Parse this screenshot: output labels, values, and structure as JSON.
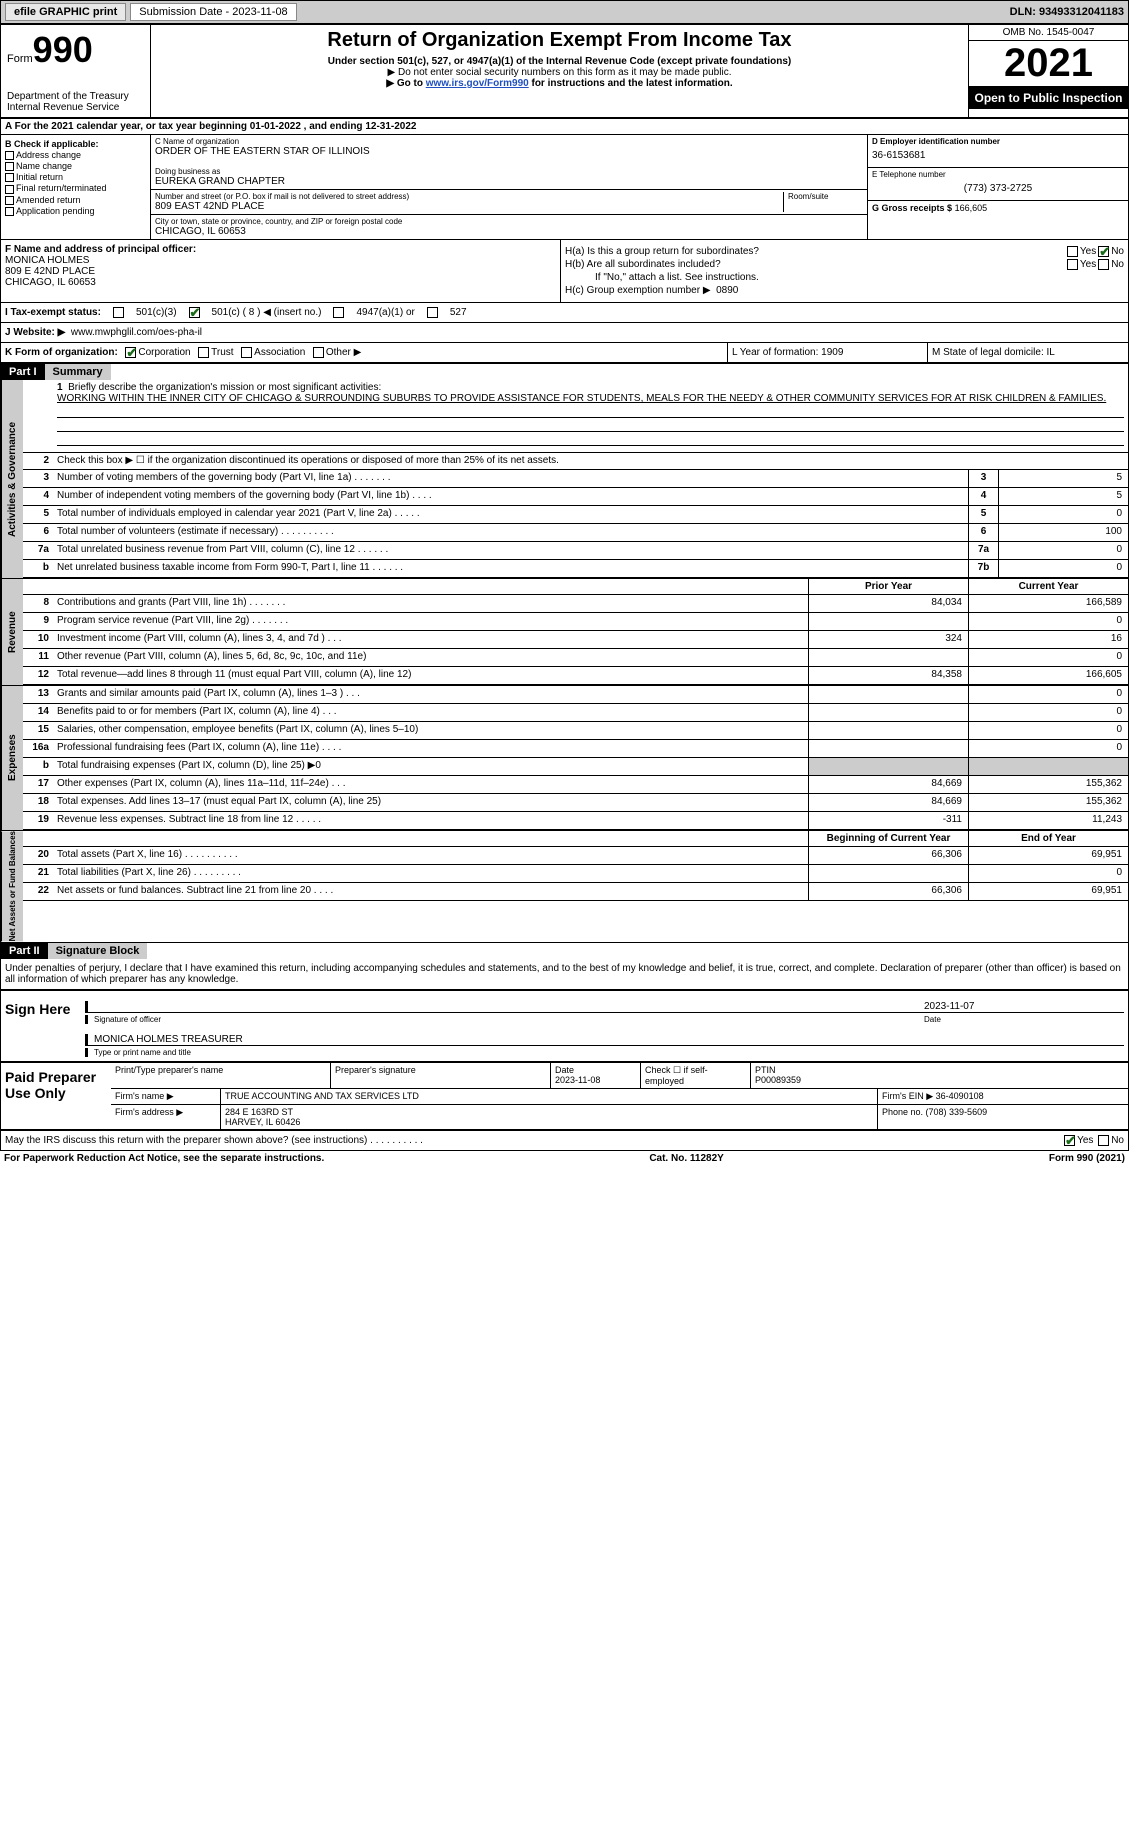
{
  "topbar": {
    "efile": "efile GRAPHIC print",
    "submission_label": "Submission Date - 2023-11-08",
    "dln": "DLN: 93493312041183"
  },
  "header": {
    "form_word": "Form",
    "form_num": "990",
    "title": "Return of Organization Exempt From Income Tax",
    "sub1": "Under section 501(c), 527, or 4947(a)(1) of the Internal Revenue Code (except private foundations)",
    "sub2": "▶ Do not enter social security numbers on this form as it may be made public.",
    "sub3_pre": "▶ Go to ",
    "sub3_link": "www.irs.gov/Form990",
    "sub3_post": " for instructions and the latest information.",
    "dept": "Department of the Treasury\nInternal Revenue Service",
    "omb": "OMB No. 1545-0047",
    "year": "2021",
    "otpi": "Open to Public Inspection"
  },
  "row_a": "A For the 2021 calendar year, or tax year beginning 01-01-2022   , and ending 12-31-2022",
  "col_b": {
    "title": "B Check if applicable:",
    "opts": [
      "Address change",
      "Name change",
      "Initial return",
      "Final return/terminated",
      "Amended return",
      "Application pending"
    ]
  },
  "col_c": {
    "name_lbl": "C Name of organization",
    "name_val": "ORDER OF THE EASTERN STAR OF ILLINOIS",
    "dba_lbl": "Doing business as",
    "dba_val": "EUREKA GRAND CHAPTER",
    "addr_lbl": "Number and street (or P.O. box if mail is not delivered to street address)",
    "room_lbl": "Room/suite",
    "addr_val": "809 EAST 42ND PLACE",
    "city_lbl": "City or town, state or province, country, and ZIP or foreign postal code",
    "city_val": "CHICAGO, IL  60653"
  },
  "col_d": {
    "ein_lbl": "D Employer identification number",
    "ein_val": "36-6153681",
    "tel_lbl": "E Telephone number",
    "tel_val": "(773) 373-2725",
    "gross_lbl": "G Gross receipts $",
    "gross_val": "166,605"
  },
  "row_f": {
    "lbl": "F Name and address of principal officer:",
    "name": "MONICA HOLMES",
    "addr1": "809 E 42ND PLACE",
    "addr2": "CHICAGO, IL  60653"
  },
  "row_h": {
    "ha": "H(a)  Is this a group return for subordinates?",
    "hb": "H(b)  Are all subordinates included?",
    "hb_note": "If \"No,\" attach a list. See instructions.",
    "hc": "H(c)  Group exemption number ▶",
    "hc_val": "0890",
    "yes": "Yes",
    "no": "No"
  },
  "row_i": {
    "lbl": "I   Tax-exempt status:",
    "o1": "501(c)(3)",
    "o2": "501(c) ( 8 ) ◀ (insert no.)",
    "o3": "4947(a)(1) or",
    "o4": "527"
  },
  "row_j": {
    "lbl": "J   Website: ▶",
    "val": "www.mwphglil.com/oes-pha-il"
  },
  "row_k": {
    "k_lbl": "K Form of organization:",
    "k_corp": "Corporation",
    "k_trust": "Trust",
    "k_assoc": "Association",
    "k_other": "Other ▶",
    "l": "L Year of formation: 1909",
    "m": "M State of legal domicile: IL"
  },
  "part1": {
    "hdr": "Part I",
    "title": "Summary",
    "side_ag": "Activities & Governance",
    "side_rev": "Revenue",
    "side_exp": "Expenses",
    "side_na": "Net Assets or Fund Balances",
    "l1": "Briefly describe the organization's mission or most significant activities:",
    "l1_txt": "WORKING WITHIN THE INNER CITY OF CHICAGO & SURROUNDING SUBURBS TO PROVIDE ASSISTANCE FOR STUDENTS, MEALS FOR THE NEEDY & OTHER COMMUNITY SERVICES FOR AT RISK CHILDREN & FAMILIES.",
    "l2": "Check this box ▶ ☐  if the organization discontinued its operations or disposed of more than 25% of its net assets.",
    "lines_ag": [
      {
        "n": "3",
        "t": "Number of voting members of the governing body (Part VI, line 1a)   .    .    .    .    .    .    .",
        "bn": "3",
        "bv": "5"
      },
      {
        "n": "4",
        "t": "Number of independent voting members of the governing body (Part VI, line 1b)   .    .    .    .",
        "bn": "4",
        "bv": "5"
      },
      {
        "n": "5",
        "t": "Total number of individuals employed in calendar year 2021 (Part V, line 2a)   .    .    .    .    .",
        "bn": "5",
        "bv": "0"
      },
      {
        "n": "6",
        "t": "Total number of volunteers (estimate if necessary)   .    .    .    .    .    .    .    .    .    .",
        "bn": "6",
        "bv": "100"
      },
      {
        "n": "7a",
        "t": "Total unrelated business revenue from Part VIII, column (C), line 12   .    .    .    .    .    .",
        "bn": "7a",
        "bv": "0"
      },
      {
        "n": "b",
        "t": "Net unrelated business taxable income from Form 990-T, Part I, line 11   .    .    .    .    .    .",
        "bn": "7b",
        "bv": "0"
      }
    ],
    "col_prior": "Prior Year",
    "col_curr": "Current Year",
    "lines_rev": [
      {
        "n": "8",
        "t": "Contributions and grants (Part VIII, line 1h)   .    .    .    .    .    .    .",
        "c1": "84,034",
        "c2": "166,589"
      },
      {
        "n": "9",
        "t": "Program service revenue (Part VIII, line 2g)   .    .    .    .    .    .    .",
        "c1": "",
        "c2": "0"
      },
      {
        "n": "10",
        "t": "Investment income (Part VIII, column (A), lines 3, 4, and 7d )   .    .    .",
        "c1": "324",
        "c2": "16"
      },
      {
        "n": "11",
        "t": "Other revenue (Part VIII, column (A), lines 5, 6d, 8c, 9c, 10c, and 11e)",
        "c1": "",
        "c2": "0"
      },
      {
        "n": "12",
        "t": "Total revenue—add lines 8 through 11 (must equal Part VIII, column (A), line 12)",
        "c1": "84,358",
        "c2": "166,605"
      }
    ],
    "lines_exp": [
      {
        "n": "13",
        "t": "Grants and similar amounts paid (Part IX, column (A), lines 1–3 )   .    .    .",
        "c1": "",
        "c2": "0"
      },
      {
        "n": "14",
        "t": "Benefits paid to or for members (Part IX, column (A), line 4)   .    .    .",
        "c1": "",
        "c2": "0"
      },
      {
        "n": "15",
        "t": "Salaries, other compensation, employee benefits (Part IX, column (A), lines 5–10)",
        "c1": "",
        "c2": "0"
      },
      {
        "n": "16a",
        "t": "Professional fundraising fees (Part IX, column (A), line 11e)   .    .    .    .",
        "c1": "",
        "c2": "0"
      },
      {
        "n": "b",
        "t": "Total fundraising expenses (Part IX, column (D), line 25) ▶0",
        "c1": "shade",
        "c2": "shade"
      },
      {
        "n": "17",
        "t": "Other expenses (Part IX, column (A), lines 11a–11d, 11f–24e)   .    .    .",
        "c1": "84,669",
        "c2": "155,362"
      },
      {
        "n": "18",
        "t": "Total expenses. Add lines 13–17 (must equal Part IX, column (A), line 25)",
        "c1": "84,669",
        "c2": "155,362"
      },
      {
        "n": "19",
        "t": "Revenue less expenses. Subtract line 18 from line 12   .    .    .    .    .",
        "c1": "-311",
        "c2": "11,243"
      }
    ],
    "col_beg": "Beginning of Current Year",
    "col_end": "End of Year",
    "lines_na": [
      {
        "n": "20",
        "t": "Total assets (Part X, line 16)   .    .    .    .    .    .    .    .    .    .",
        "c1": "66,306",
        "c2": "69,951"
      },
      {
        "n": "21",
        "t": "Total liabilities (Part X, line 26)   .    .    .    .    .    .    .    .    .",
        "c1": "",
        "c2": "0"
      },
      {
        "n": "22",
        "t": "Net assets or fund balances. Subtract line 21 from line 20   .    .    .    .",
        "c1": "66,306",
        "c2": "69,951"
      }
    ]
  },
  "part2": {
    "hdr": "Part II",
    "title": "Signature Block",
    "decl": "Under penalties of perjury, I declare that I have examined this return, including accompanying schedules and statements, and to the best of my knowledge and belief, it is true, correct, and complete. Declaration of preparer (other than officer) is based on all information of which preparer has any knowledge.",
    "sign_here": "Sign Here",
    "sig_date": "2023-11-07",
    "sig_lbl1": "Signature of officer",
    "sig_lbl2": "Date",
    "sig_name": "MONICA HOLMES  TREASURER",
    "sig_lbl3": "Type or print name and title",
    "paid": "Paid Preparer Use Only",
    "p_r1": {
      "a": "Print/Type preparer's name",
      "b": "Preparer's signature",
      "c": "Date\n2023-11-08",
      "d": "Check ☐ if self-employed",
      "e": "PTIN\nP00089359"
    },
    "p_r2": {
      "a": "Firm's name    ▶",
      "b": "TRUE ACCOUNTING AND TAX SERVICES LTD",
      "c": "Firm's EIN ▶ 36-4090108"
    },
    "p_r3": {
      "a": "Firm's address ▶",
      "b": "284 E 163RD ST\nHARVEY, IL  60426",
      "c": "Phone no. (708) 339-5609"
    },
    "may": "May the IRS discuss this return with the preparer shown above? (see instructions)   .    .    .    .    .    .    .    .    .    .",
    "foot_l": "For Paperwork Reduction Act Notice, see the separate instructions.",
    "foot_c": "Cat. No. 11282Y",
    "foot_r": "Form 990 (2021)"
  }
}
